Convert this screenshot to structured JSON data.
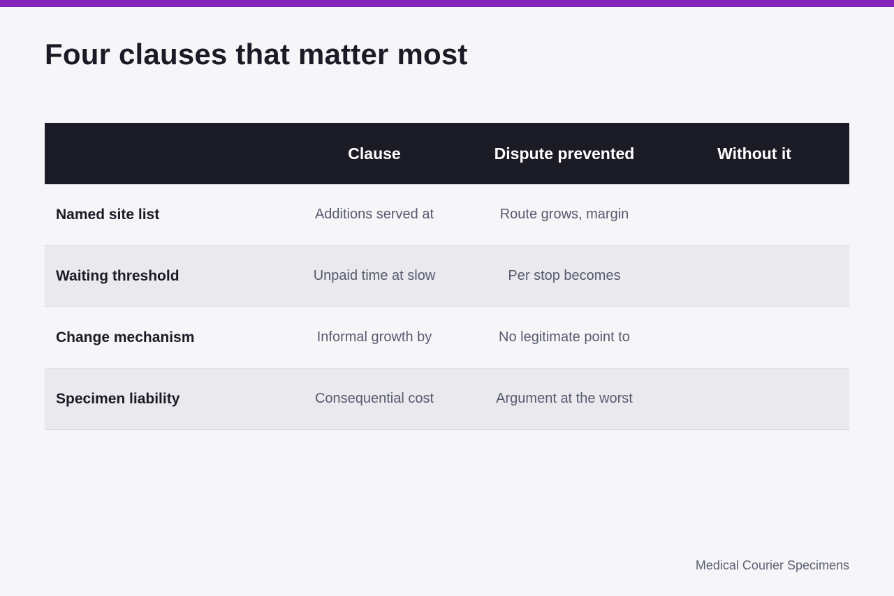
{
  "title": "Four clauses that matter most",
  "table": {
    "headers": [
      "",
      "Clause",
      "Dispute prevented",
      "Without it"
    ],
    "rows": [
      {
        "label": "Named site list",
        "cells": [
          "Additions served at",
          "Route grows, margin",
          ""
        ]
      },
      {
        "label": "Waiting threshold",
        "cells": [
          "Unpaid time at slow",
          "Per stop becomes",
          ""
        ]
      },
      {
        "label": "Change mechanism",
        "cells": [
          "Informal growth by",
          "No legitimate point to",
          ""
        ]
      },
      {
        "label": "Specimen liability",
        "cells": [
          "Consequential cost",
          "Argument at the worst",
          ""
        ]
      }
    ]
  },
  "footer": "Medical Courier Specimens",
  "colors": {
    "accent": "#8424bd",
    "header_bg": "#1b1b26",
    "page_bg": "#f6f6f9",
    "alt_row_bg": "#e9e9ee"
  }
}
